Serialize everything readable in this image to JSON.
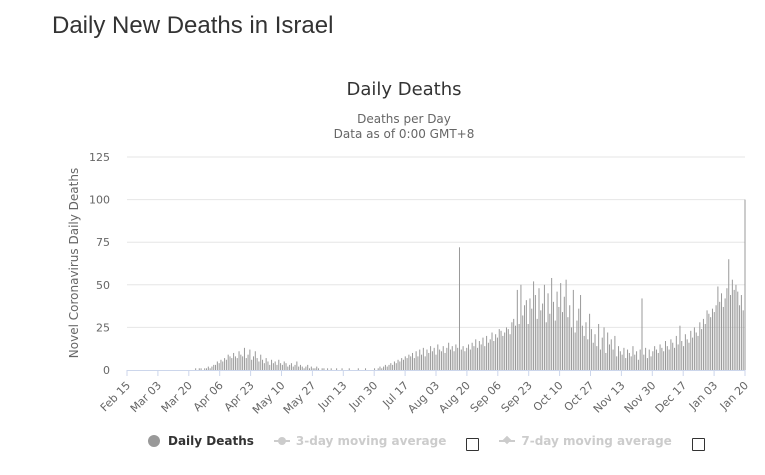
{
  "page": {
    "title": "Daily New Deaths in Israel"
  },
  "chart_data": {
    "type": "bar",
    "title": "Daily Deaths",
    "subtitle_lines": [
      "Deaths per Day",
      "Data as of 0:00 GMT+8"
    ],
    "ylabel": "Novel Coronavirus Daily Deaths",
    "xlabel": "",
    "ylim": [
      0,
      125
    ],
    "yticks": [
      0,
      25,
      50,
      75,
      100,
      125
    ],
    "grid": true,
    "x_start": "2020-02-15",
    "x_end": "2021-01-20",
    "xtick_labels": [
      "Feb 15",
      "Mar 03",
      "Mar 20",
      "Apr 06",
      "Apr 23",
      "May 10",
      "May 27",
      "Jun 13",
      "Jun 30",
      "Jul 17",
      "Aug 03",
      "Aug 20",
      "Sep 06",
      "Sep 23",
      "Oct 10",
      "Oct 27",
      "Nov 13",
      "Nov 30",
      "Dec 17",
      "Jan 03",
      "Jan 20"
    ],
    "colors": {
      "bars": "#999999",
      "grid": "#e6e6e6",
      "axis": "#ccd6eb",
      "text": "#666666",
      "title": "#333333"
    },
    "series": [
      {
        "name": "Daily Deaths",
        "values": [
          0,
          0,
          0,
          0,
          0,
          0,
          0,
          0,
          0,
          0,
          0,
          0,
          0,
          0,
          0,
          0,
          0,
          0,
          0,
          0,
          0,
          0,
          0,
          0,
          0,
          0,
          0,
          0,
          0,
          0,
          0,
          0,
          0,
          0,
          0,
          0,
          0,
          0,
          1,
          0,
          1,
          1,
          0,
          1,
          1,
          2,
          1,
          2,
          3,
          3,
          5,
          4,
          6,
          5,
          7,
          6,
          9,
          8,
          7,
          10,
          8,
          7,
          11,
          9,
          8,
          13,
          7,
          9,
          12,
          6,
          8,
          11,
          7,
          5,
          9,
          6,
          4,
          7,
          5,
          3,
          6,
          4,
          5,
          3,
          6,
          4,
          3,
          5,
          4,
          2,
          3,
          4,
          2,
          3,
          5,
          2,
          3,
          2,
          1,
          2,
          3,
          1,
          2,
          1,
          1,
          2,
          1,
          0,
          1,
          1,
          0,
          1,
          0,
          1,
          0,
          0,
          1,
          0,
          0,
          1,
          0,
          0,
          0,
          1,
          0,
          0,
          0,
          0,
          1,
          0,
          0,
          0,
          1,
          0,
          0,
          0,
          0,
          1,
          0,
          1,
          2,
          1,
          2,
          3,
          2,
          3,
          4,
          3,
          5,
          4,
          6,
          5,
          7,
          6,
          8,
          7,
          9,
          8,
          10,
          7,
          11,
          8,
          12,
          9,
          13,
          8,
          12,
          10,
          14,
          11,
          13,
          9,
          15,
          12,
          11,
          14,
          10,
          13,
          16,
          12,
          14,
          11,
          15,
          13,
          72,
          12,
          14,
          11,
          13,
          15,
          12,
          16,
          14,
          18,
          13,
          17,
          15,
          19,
          14,
          20,
          16,
          18,
          22,
          17,
          21,
          19,
          24,
          23,
          20,
          22,
          25,
          24,
          21,
          28,
          30,
          26,
          47,
          27,
          50,
          32,
          38,
          41,
          27,
          42,
          36,
          52,
          44,
          30,
          48,
          35,
          39,
          50,
          28,
          45,
          33,
          54,
          40,
          29,
          46,
          37,
          51,
          34,
          43,
          53,
          31,
          38,
          25,
          47,
          22,
          29,
          36,
          44,
          26,
          20,
          28,
          18,
          33,
          24,
          16,
          21,
          14,
          27,
          12,
          19,
          25,
          10,
          22,
          15,
          18,
          12,
          20,
          8,
          14,
          11,
          9,
          13,
          7,
          12,
          10,
          8,
          14,
          9,
          11,
          6,
          12,
          42,
          9,
          13,
          7,
          12,
          8,
          11,
          14,
          12,
          10,
          15,
          13,
          11,
          17,
          14,
          12,
          18,
          16,
          13,
          20,
          15,
          26,
          17,
          14,
          21,
          18,
          16,
          23,
          19,
          25,
          22,
          20,
          28,
          24,
          30,
          27,
          35,
          33,
          31,
          36,
          34,
          38,
          49,
          40,
          45,
          37,
          42,
          48,
          65,
          44,
          53,
          47,
          50,
          46,
          38,
          44,
          35,
          100
        ]
      }
    ]
  },
  "legend": {
    "items": [
      {
        "label": "Daily Deaths",
        "active": true,
        "color": "#999999"
      },
      {
        "label": "3-day moving average",
        "active": false,
        "color": "#cccccc",
        "checkbox": true
      },
      {
        "label": "7-day moving average",
        "active": false,
        "color": "#cccccc",
        "checkbox": true
      }
    ]
  }
}
